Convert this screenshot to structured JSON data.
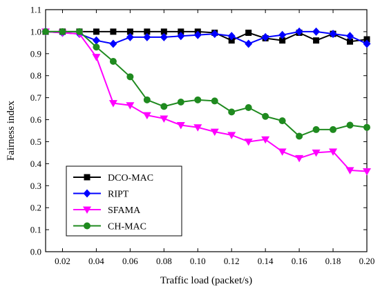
{
  "chart_data": {
    "type": "line",
    "title": "",
    "xlabel": "Traffic load (packet/s)",
    "ylabel": "Fairness index",
    "xlim": [
      0.01,
      0.2
    ],
    "ylim": [
      0.0,
      1.1
    ],
    "xticks": [
      0.02,
      0.04,
      0.06,
      0.08,
      0.1,
      0.12,
      0.14,
      0.16,
      0.18,
      0.2
    ],
    "xtick_labels": [
      "0.02",
      "0.04",
      "0.06",
      "0.08",
      "0.10",
      "0.12",
      "0.14",
      "0.16",
      "0.18",
      "0.20"
    ],
    "yticks": [
      0.0,
      0.1,
      0.2,
      0.3,
      0.4,
      0.5,
      0.6,
      0.7,
      0.8,
      0.9,
      1.0,
      1.1
    ],
    "ytick_labels": [
      "0.0",
      "0.1",
      "0.2",
      "0.3",
      "0.4",
      "0.5",
      "0.6",
      "0.7",
      "0.8",
      "0.9",
      "1.0",
      "1.1"
    ],
    "grid": false,
    "legend_position": "bottom-left",
    "x": [
      0.01,
      0.02,
      0.03,
      0.04,
      0.05,
      0.06,
      0.07,
      0.08,
      0.09,
      0.1,
      0.11,
      0.12,
      0.13,
      0.14,
      0.15,
      0.16,
      0.17,
      0.18,
      0.19,
      0.2
    ],
    "series": [
      {
        "name": "DCO-MAC",
        "color": "#000000",
        "marker": "square",
        "values": [
          1.0,
          1.0,
          1.0,
          1.0,
          1.0,
          1.0,
          1.0,
          1.0,
          1.0,
          1.0,
          0.995,
          0.96,
          0.995,
          0.97,
          0.96,
          0.995,
          0.96,
          0.99,
          0.955,
          0.965
        ]
      },
      {
        "name": "RIPT",
        "color": "#0000ff",
        "marker": "diamond",
        "values": [
          1.0,
          0.995,
          0.99,
          0.96,
          0.945,
          0.975,
          0.975,
          0.975,
          0.98,
          0.985,
          0.99,
          0.98,
          0.945,
          0.975,
          0.985,
          1.0,
          1.0,
          0.99,
          0.98,
          0.945
        ]
      },
      {
        "name": "SFAMA",
        "color": "#ff00ff",
        "marker": "triangle-down",
        "values": [
          1.0,
          0.995,
          0.99,
          0.885,
          0.675,
          0.665,
          0.62,
          0.605,
          0.575,
          0.565,
          0.545,
          0.53,
          0.5,
          0.51,
          0.455,
          0.425,
          0.45,
          0.455,
          0.37,
          0.365
        ]
      },
      {
        "name": "CH-MAC",
        "color": "#1f8a1f",
        "marker": "circle",
        "values": [
          1.0,
          1.0,
          1.0,
          0.93,
          0.865,
          0.795,
          0.69,
          0.66,
          0.68,
          0.69,
          0.685,
          0.635,
          0.655,
          0.615,
          0.595,
          0.525,
          0.555,
          0.555,
          0.575,
          0.565
        ]
      }
    ]
  }
}
